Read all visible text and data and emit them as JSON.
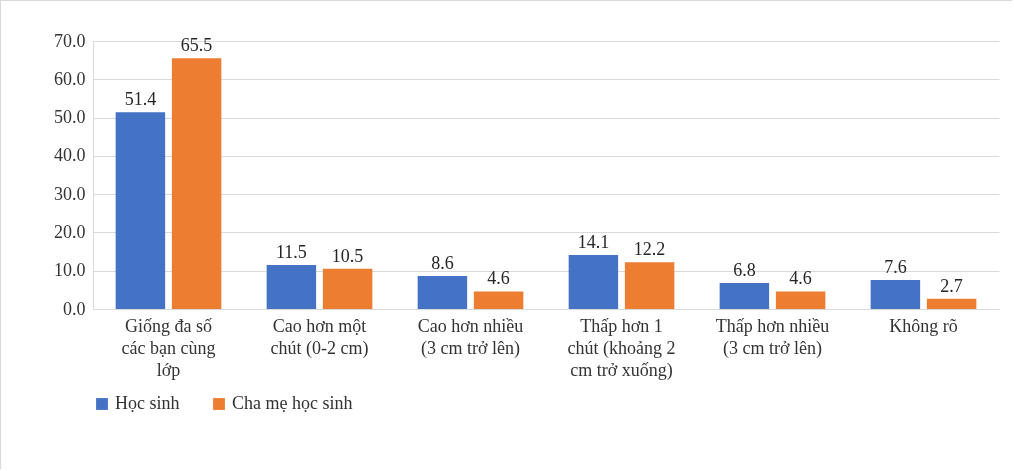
{
  "chart_data": {
    "type": "bar",
    "categories": [
      "Giống đa số các bạn cùng lớp",
      "Cao hơn một chút (0-2 cm)",
      "Cao hơn nhiều (3 cm trở lên)",
      "Thấp hơn 1 chút (khoảng 2 cm trở xuống)",
      "Thấp hơn nhiều (3 cm trở lên)",
      "Không rõ"
    ],
    "series": [
      {
        "name": "Học sinh",
        "color": "#4472c4",
        "values": [
          51.4,
          11.5,
          8.6,
          14.1,
          6.8,
          7.6
        ]
      },
      {
        "name": "Cha mẹ học sinh",
        "color": "#ed7d31",
        "values": [
          65.5,
          10.5,
          4.6,
          12.2,
          4.6,
          2.7
        ]
      }
    ],
    "ylim": [
      0,
      70
    ],
    "yticks": [
      {
        "value": 0,
        "label": "0.0"
      },
      {
        "value": 10,
        "label": "10.0"
      },
      {
        "value": 20,
        "label": "20.0"
      },
      {
        "value": 30,
        "label": "30.0"
      },
      {
        "value": 40,
        "label": "40.0"
      },
      {
        "value": 50,
        "label": "50.0"
      },
      {
        "value": 60,
        "label": "60.0"
      },
      {
        "value": 70,
        "label": "70.0"
      }
    ],
    "grid": "y",
    "legend": "bottom",
    "data_labels": true
  }
}
